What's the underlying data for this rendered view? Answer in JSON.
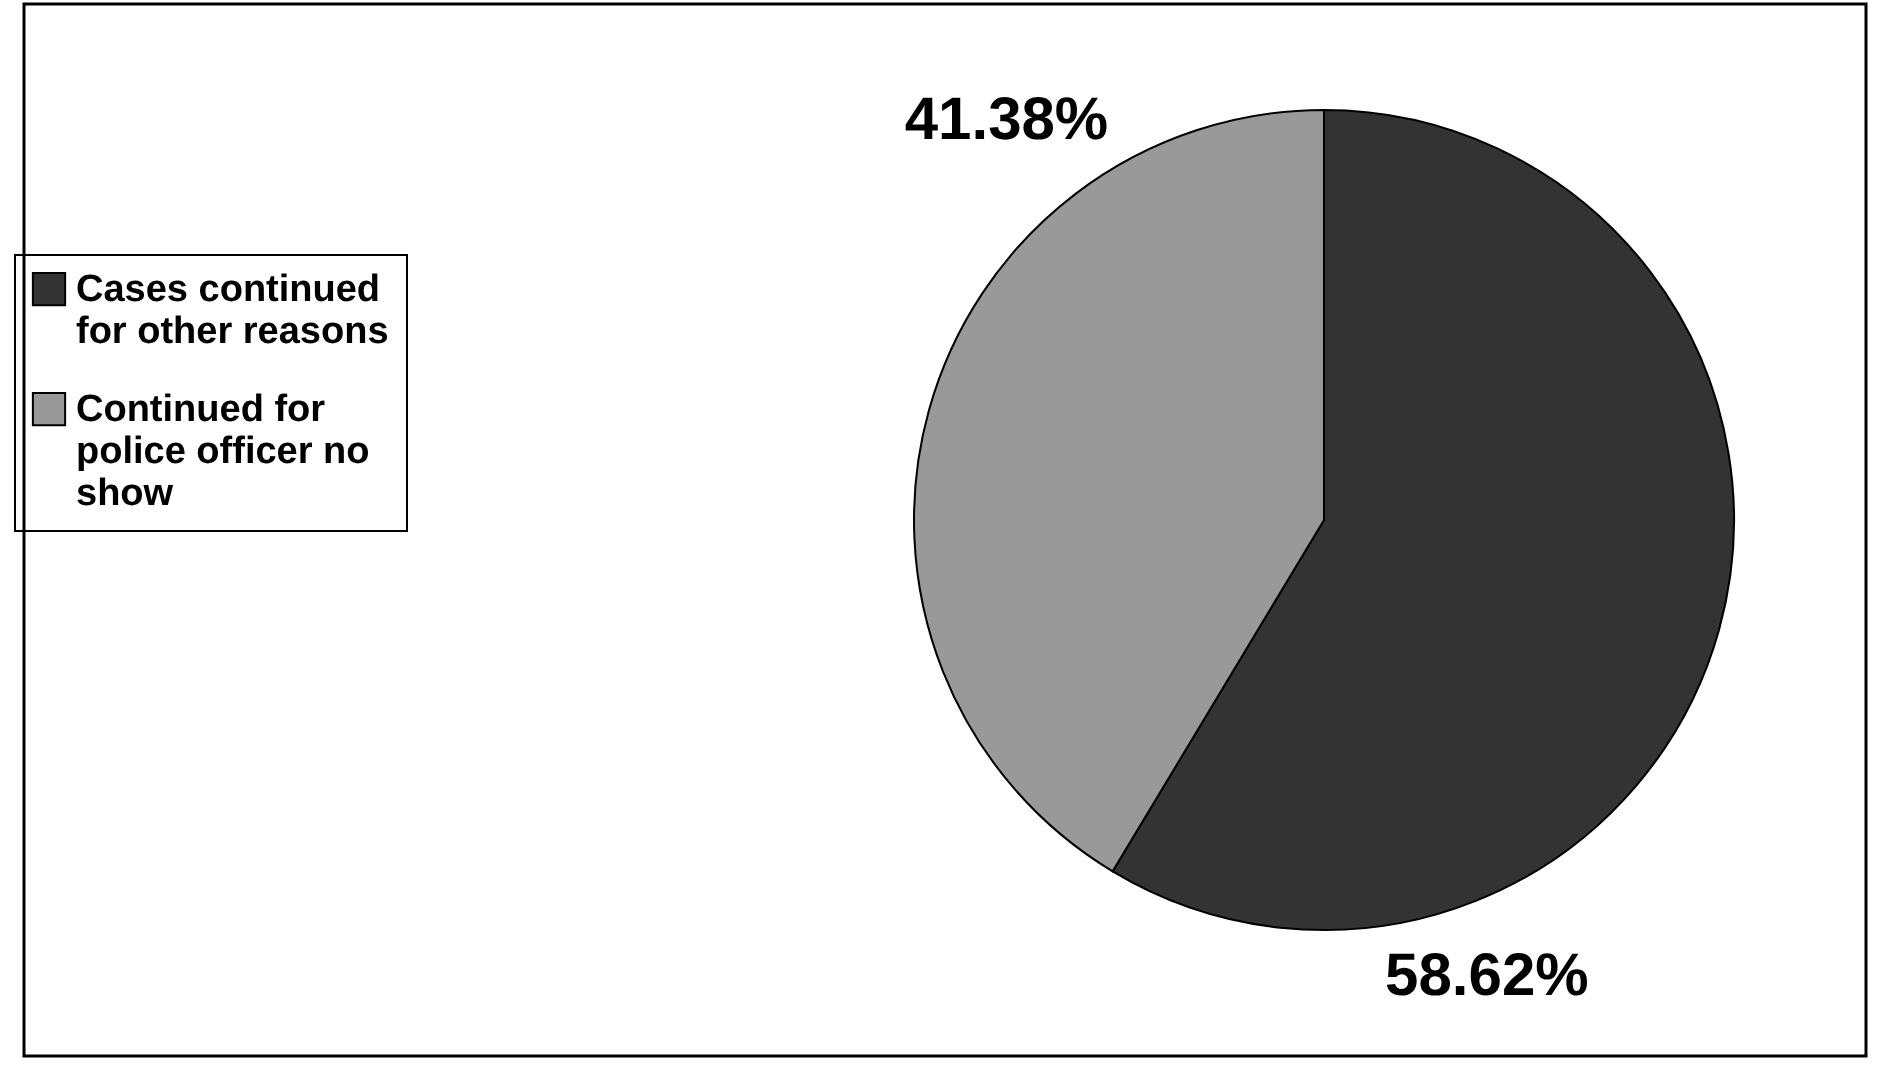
{
  "chart_data": {
    "type": "pie",
    "categories": [
      "Cases continued for other reasons",
      "Continued for police officer no show"
    ],
    "values": [
      58.62,
      41.38
    ],
    "colors": [
      "#333333",
      "#999999"
    ],
    "value_labels": [
      "58.62%",
      "41.38%"
    ],
    "legend": "left"
  }
}
